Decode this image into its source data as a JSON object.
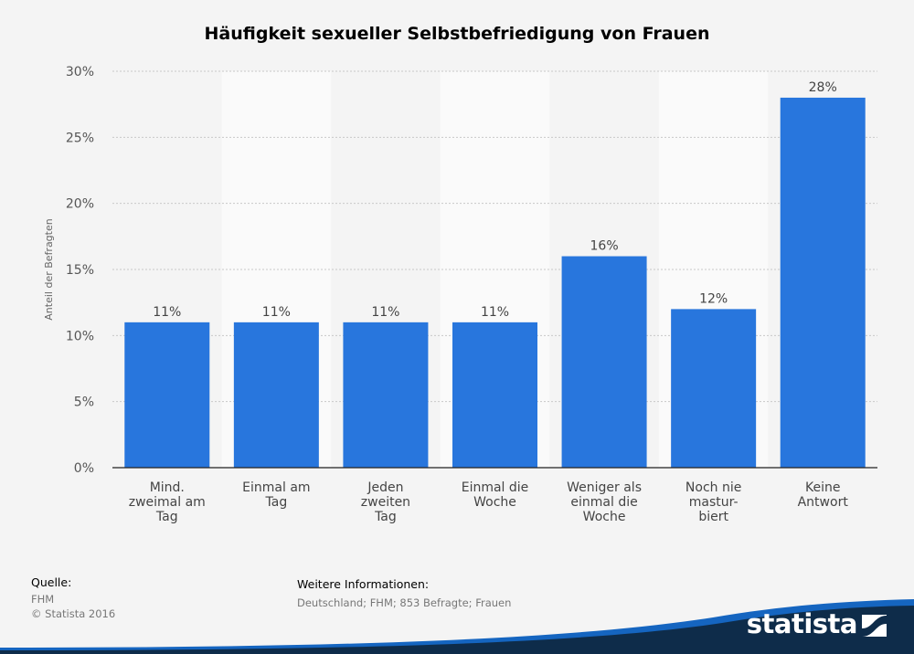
{
  "title": "Häufigkeit sexueller Selbstbefriedigung von Frauen",
  "source": {
    "heading": "Quelle:",
    "name": "FHM",
    "copyright": "© Statista 2016"
  },
  "info": {
    "heading": "Weitere Informationen:",
    "text": "Deutschland; FHM; 853 Befragte; Frauen"
  },
  "brand": {
    "name": "statista",
    "icon": "statista-logo-icon",
    "color": "#0e2c4a"
  },
  "colors": {
    "bar": "#2876dd",
    "background": "#f4f4f4",
    "band_alt": "#fafafa"
  },
  "chart_data": {
    "type": "bar",
    "title": "Häufigkeit sexueller Selbstbefriedigung von Frauen",
    "xlabel": "",
    "ylabel": "Anteil der Befragten",
    "categories": [
      [
        "Mind.",
        "zweimal am",
        "Tag"
      ],
      [
        "Einmal am",
        "Tag"
      ],
      [
        "Jeden",
        "zweiten",
        "Tag"
      ],
      [
        "Einmal die",
        "Woche"
      ],
      [
        "Weniger als",
        "einmal die",
        "Woche"
      ],
      [
        "Noch nie",
        "mastur-",
        "biert"
      ],
      [
        "Keine",
        "Antwort"
      ]
    ],
    "values": [
      11,
      11,
      11,
      11,
      16,
      12,
      28
    ],
    "value_labels": [
      "11%",
      "11%",
      "11%",
      "11%",
      "16%",
      "12%",
      "28%"
    ],
    "ylim": [
      0,
      30
    ],
    "yticks": [
      0,
      5,
      10,
      15,
      20,
      25,
      30
    ],
    "ytick_labels": [
      "0%",
      "5%",
      "10%",
      "15%",
      "20%",
      "25%",
      "30%"
    ],
    "grid": true,
    "legend": "none"
  }
}
